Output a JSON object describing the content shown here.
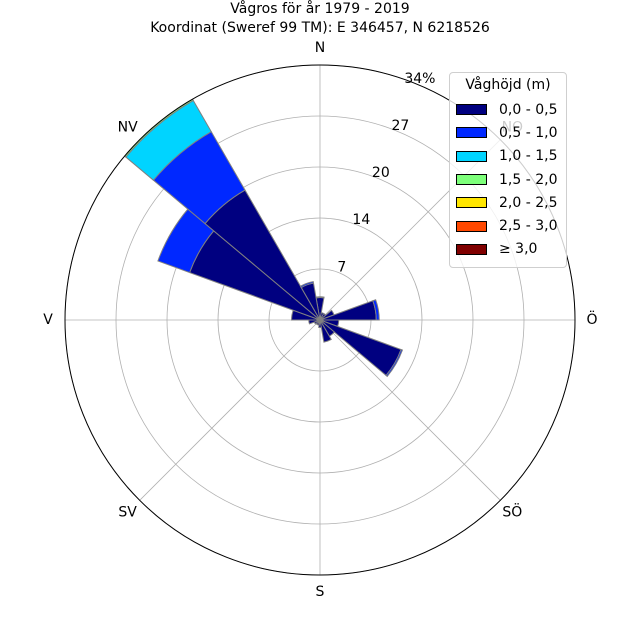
{
  "chart_data": {
    "type": "bar",
    "subtype": "wind-rose",
    "title": "Vågros för år 1979 - 2019",
    "subtitle": "Koordinat (Sweref 99 TM): E 346457, N 6218526",
    "directions": [
      "N",
      "NO",
      "Ö",
      "SÖ",
      "S",
      "SV",
      "V",
      "NV"
    ],
    "ring_labels": [
      "7",
      "14",
      "20",
      "27",
      "34%"
    ],
    "rmax": 34,
    "ring_values": [
      6.8,
      13.6,
      20.4,
      27.2,
      34.0
    ],
    "legend": {
      "title": "Våghöjd (m)",
      "placement": "top-right",
      "entries": [
        {
          "label": "0,0 - 0,5",
          "color": "#000080"
        },
        {
          "label": "0,5 - 1,0",
          "color": "#0028ff"
        },
        {
          "label": "1,0 - 1,5",
          "color": "#00d4ff"
        },
        {
          "label": "1,5 - 2,0",
          "color": "#7dff7a"
        },
        {
          "label": "2,0 - 2,5",
          "color": "#ffe600"
        },
        {
          "label": "2,5 - 3,0",
          "color": "#ff4800"
        },
        {
          "label": "≥ 3,0",
          "color": "#800000"
        }
      ]
    },
    "sector_width_deg": 20,
    "sectors": [
      {
        "dir_deg": 0,
        "values": [
          3.0,
          0.1,
          0,
          0,
          0,
          0,
          0
        ]
      },
      {
        "dir_deg": 20,
        "values": [
          1.0,
          0,
          0,
          0,
          0,
          0,
          0
        ]
      },
      {
        "dir_deg": 40,
        "values": [
          1.0,
          0,
          0,
          0,
          0,
          0,
          0
        ]
      },
      {
        "dir_deg": 60,
        "values": [
          2.0,
          0,
          0,
          0,
          0,
          0,
          0
        ]
      },
      {
        "dir_deg": 80,
        "values": [
          7.5,
          0.4,
          0,
          0,
          0,
          0,
          0
        ]
      },
      {
        "dir_deg": 100,
        "values": [
          2.5,
          0,
          0,
          0,
          0,
          0,
          0
        ]
      },
      {
        "dir_deg": 120,
        "values": [
          11.5,
          0.2,
          0,
          0,
          0,
          0,
          0
        ]
      },
      {
        "dir_deg": 140,
        "values": [
          2.5,
          0,
          0,
          0,
          0,
          0,
          0
        ]
      },
      {
        "dir_deg": 160,
        "values": [
          3.0,
          0,
          0,
          0,
          0,
          0,
          0
        ]
      },
      {
        "dir_deg": 180,
        "values": [
          1.0,
          0,
          0,
          0,
          0,
          0,
          0
        ]
      },
      {
        "dir_deg": 200,
        "values": [
          0.7,
          0,
          0,
          0,
          0,
          0,
          0
        ]
      },
      {
        "dir_deg": 220,
        "values": [
          0.7,
          0,
          0,
          0,
          0,
          0,
          0
        ]
      },
      {
        "dir_deg": 240,
        "values": [
          0.8,
          0,
          0,
          0,
          0,
          0,
          0
        ]
      },
      {
        "dir_deg": 260,
        "values": [
          1.5,
          0,
          0,
          0,
          0,
          0,
          0
        ]
      },
      {
        "dir_deg": 280,
        "values": [
          3.8,
          0,
          0,
          0,
          0,
          0,
          0
        ]
      },
      {
        "dir_deg": 300,
        "values": [
          18.5,
          4.5,
          0,
          0,
          0,
          0,
          0
        ]
      },
      {
        "dir_deg": 320,
        "values": [
          20.0,
          9.0,
          4.8,
          0.2,
          0,
          0,
          0
        ]
      },
      {
        "dir_deg": 340,
        "values": [
          5.0,
          0.2,
          0,
          0,
          0,
          0,
          0
        ]
      }
    ],
    "grid": true
  }
}
